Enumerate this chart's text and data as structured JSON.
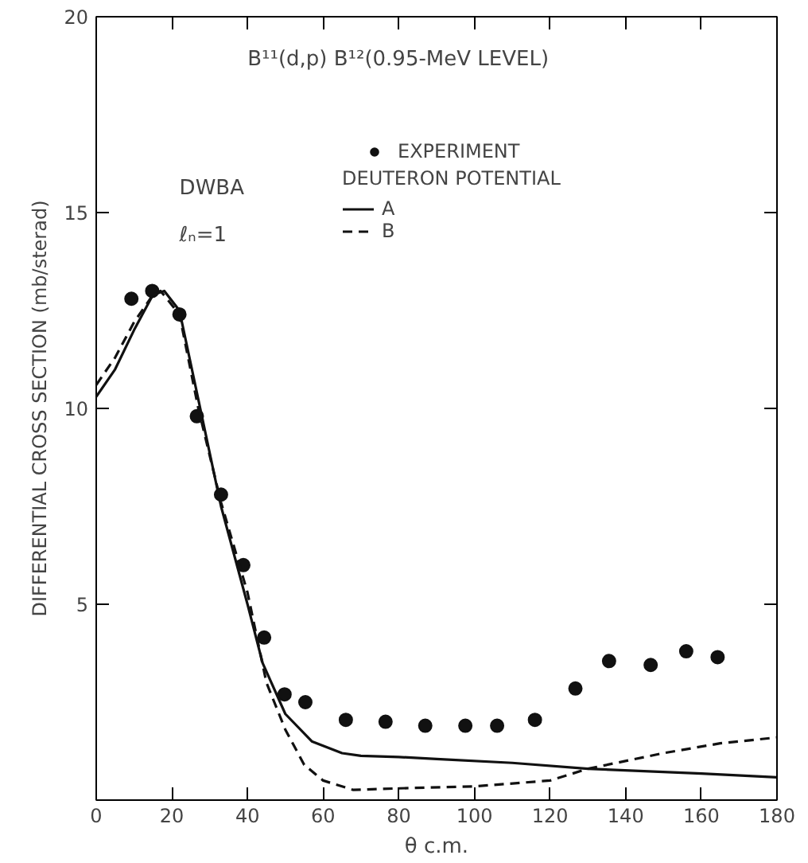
{
  "chart_data": {
    "type": "line",
    "xlabel": "θ c.m.",
    "ylabel": "DIFFERENTIAL CROSS SECTION (mb/sterad)",
    "xlim": [
      0,
      180
    ],
    "ylim": [
      0,
      20
    ],
    "xticks": [
      0,
      20,
      40,
      60,
      80,
      100,
      120,
      140,
      160,
      180
    ],
    "yticks": [
      {
        "value": 0,
        "label": null
      },
      5,
      10,
      15,
      20
    ],
    "annotations": [
      "B¹¹(d,p) B¹²(0.95-MeV LEVEL)",
      "DWBA",
      "ℓₙ=1"
    ],
    "legend": "top",
    "legend_title": "DEUTERON POTENTIAL",
    "grid": false,
    "series": [
      {
        "name": "EXPERIMENT",
        "type": "scatter",
        "marker": "circle",
        "color": "#111111",
        "x": [
          9.3,
          14.8,
          22,
          26.6,
          33,
          38.9,
          44.4,
          49.8,
          55.3,
          66,
          76.5,
          87,
          97.6,
          106,
          116,
          126.7,
          135.6,
          146.6,
          156,
          164.3
        ],
        "values": [
          12.8,
          13.0,
          12.4,
          9.8,
          7.8,
          6.0,
          4.15,
          2.7,
          2.5,
          2.05,
          2.0,
          1.9,
          1.9,
          1.9,
          2.05,
          2.85,
          3.55,
          3.45,
          3.8,
          3.65
        ]
      },
      {
        "name": "A",
        "line_style": "solid",
        "color": "#111111",
        "x": [
          0,
          5,
          10,
          15,
          18,
          22,
          27.5,
          33,
          40,
          44,
          50,
          57,
          65,
          70,
          80,
          90,
          110,
          130,
          160,
          180
        ],
        "values": [
          10.3,
          11.0,
          12.0,
          12.9,
          13.0,
          12.5,
          10.0,
          7.5,
          5.0,
          3.5,
          2.2,
          1.5,
          1.2,
          1.13,
          1.1,
          1.05,
          0.95,
          0.8,
          0.68,
          0.58
        ]
      },
      {
        "name": "B",
        "line_style": "dashed",
        "color": "#111111",
        "x": [
          0,
          5,
          10,
          15,
          17,
          22,
          27,
          33,
          40,
          45,
          50,
          55,
          60,
          68,
          80,
          100,
          120,
          130,
          150,
          165,
          180
        ],
        "values": [
          10.6,
          11.3,
          12.2,
          12.9,
          13.0,
          12.4,
          10.0,
          7.6,
          5.3,
          3.0,
          1.8,
          0.9,
          0.5,
          0.26,
          0.3,
          0.35,
          0.5,
          0.8,
          1.2,
          1.45,
          1.6
        ]
      }
    ]
  }
}
